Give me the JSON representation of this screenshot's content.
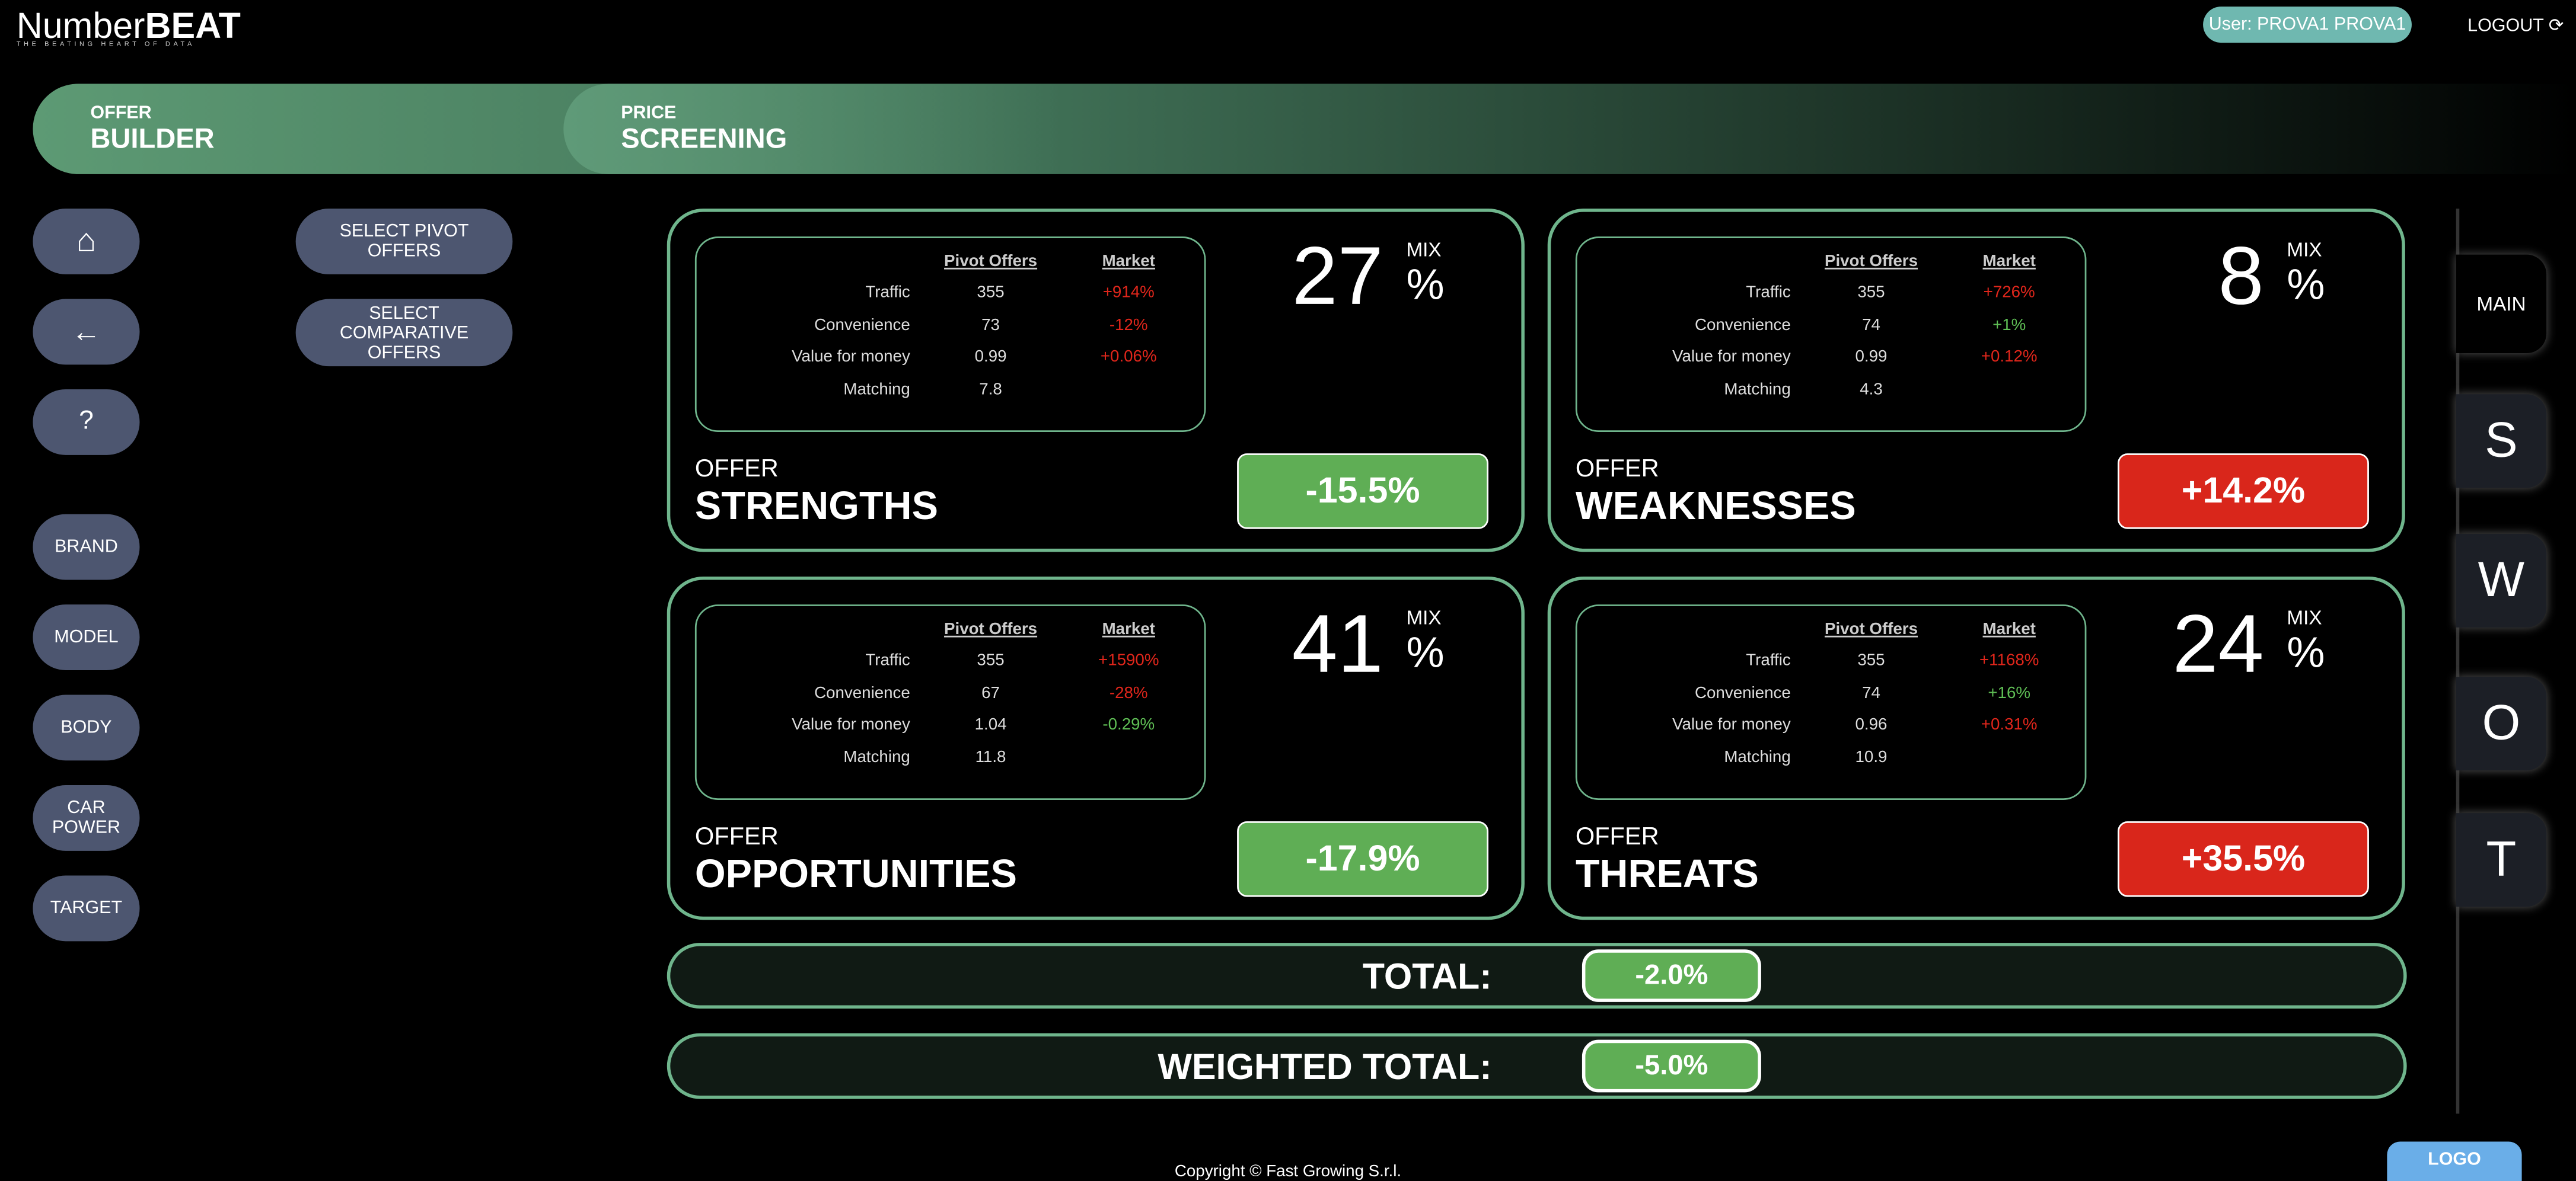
{
  "header": {
    "logo": "Number",
    "logo_bold": "BEAT",
    "tagline": "THE BEATING HEART OF DATA",
    "user": "User: PROVA1 PROVA1",
    "logout": "LOGOUT"
  },
  "tabs": [
    {
      "small": "OFFER",
      "big": "BUILDER"
    },
    {
      "small": "PRICE",
      "big": "SCREENING"
    }
  ],
  "selectors": [
    "SELECT PIVOT OFFERS",
    "SELECT COMPARATIVE OFFERS"
  ],
  "sidebar": [
    "BRAND",
    "MODEL",
    "BODY",
    "CAR POWER",
    "TARGET"
  ],
  "columns": [
    "Pivot Offers",
    "Market"
  ],
  "mix_label": "MIX",
  "mix_unit": "%",
  "quadrants": [
    {
      "label": "OFFER",
      "title": "STRENGTHS",
      "mix": "27",
      "score": "-15.5%",
      "score_color": "#5fae55",
      "rows": [
        {
          "name": "Traffic",
          "pivot": "355",
          "market": "+914%",
          "market_color": "#e0261b"
        },
        {
          "name": "Convenience",
          "pivot": "73",
          "market": "-12%",
          "market_color": "#e0261b"
        },
        {
          "name": "Value for money",
          "pivot": "0.99",
          "market": "+0.06%",
          "market_color": "#e0261b"
        },
        {
          "name": "Matching",
          "pivot": "7.8",
          "market": null,
          "market_color": null
        }
      ]
    },
    {
      "label": "OFFER",
      "title": "WEAKNESSES",
      "mix": "8",
      "score": "+14.2%",
      "score_color": "#d9261b",
      "rows": [
        {
          "name": "Traffic",
          "pivot": "355",
          "market": "+726%",
          "market_color": "#e0261b"
        },
        {
          "name": "Convenience",
          "pivot": "74",
          "market": "+1%",
          "market_color": "#5fbf55"
        },
        {
          "name": "Value for money",
          "pivot": "0.99",
          "market": "+0.12%",
          "market_color": "#e0261b"
        },
        {
          "name": "Matching",
          "pivot": "4.3",
          "market": null,
          "market_color": null
        }
      ]
    },
    {
      "label": "OFFER",
      "title": "OPPORTUNITIES",
      "mix": "41",
      "score": "-17.9%",
      "score_color": "#5fae55",
      "rows": [
        {
          "name": "Traffic",
          "pivot": "355",
          "market": "+1590%",
          "market_color": "#e0261b"
        },
        {
          "name": "Convenience",
          "pivot": "67",
          "market": "-28%",
          "market_color": "#e0261b"
        },
        {
          "name": "Value for money",
          "pivot": "1.04",
          "market": "-0.29%",
          "market_color": "#5fbf55"
        },
        {
          "name": "Matching",
          "pivot": "11.8",
          "market": null,
          "market_color": null
        }
      ]
    },
    {
      "label": "OFFER",
      "title": "THREATS",
      "mix": "24",
      "score": "+35.5%",
      "score_color": "#d9261b",
      "rows": [
        {
          "name": "Traffic",
          "pivot": "355",
          "market": "+1168%",
          "market_color": "#e0261b"
        },
        {
          "name": "Convenience",
          "pivot": "74",
          "market": "+16%",
          "market_color": "#5fbf55"
        },
        {
          "name": "Value for money",
          "pivot": "0.96",
          "market": "+0.31%",
          "market_color": "#e0261b"
        },
        {
          "name": "Matching",
          "pivot": "10.9",
          "market": null,
          "market_color": null
        }
      ]
    }
  ],
  "totals": [
    {
      "label": "TOTAL:",
      "value": "-2.0%"
    },
    {
      "label": "WEIGHTED TOTAL:",
      "value": "-5.0%"
    }
  ],
  "swot_tabs": [
    "MAIN",
    "S",
    "W",
    "O",
    "T"
  ],
  "footer": "Copyright © Fast Growing S.r.l.",
  "logo_button": "LOGO"
}
